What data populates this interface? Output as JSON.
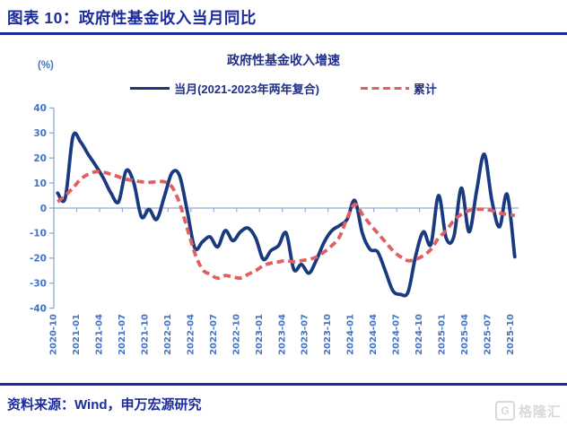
{
  "figure": {
    "title": "图表 10：政府性基金收入当月同比",
    "source": "资料来源：Wind，申万宏源研究",
    "watermark": "格隆汇",
    "watermark_icon": "G"
  },
  "colors": {
    "navy_text": "#1C2B9D",
    "axis_blue": "#8FAADC",
    "tick_label_blue": "#4472C4",
    "series_monthly": "#1A3A80",
    "series_cumulative": "#E05F5F"
  },
  "chart_data": {
    "type": "line",
    "title": "政府性基金收入增速",
    "unit_label": "(%)",
    "ylim": [
      -40,
      40
    ],
    "y_ticks": [
      40,
      30,
      20,
      10,
      0,
      -10,
      -20,
      -30,
      -40
    ],
    "x_tick_interval": 3,
    "grid": false,
    "legend_position": "top",
    "categories": [
      "2020-10",
      "2020-11",
      "2020-12",
      "2021-01",
      "2021-02",
      "2021-03",
      "2021-04",
      "2021-05",
      "2021-06",
      "2021-07",
      "2021-08",
      "2021-09",
      "2021-10",
      "2021-11",
      "2021-12",
      "2022-01",
      "2022-02",
      "2022-03",
      "2022-04",
      "2022-05",
      "2022-06",
      "2022-07",
      "2022-08",
      "2022-09",
      "2022-10",
      "2022-11",
      "2022-12",
      "2023-01",
      "2023-02",
      "2023-03",
      "2023-04",
      "2023-05",
      "2023-06",
      "2023-07",
      "2023-08",
      "2023-09",
      "2023-10",
      "2023-11",
      "2023-12",
      "2024-01",
      "2024-02",
      "2024-03",
      "2024-04",
      "2024-05",
      "2024-06",
      "2024-07",
      "2024-08",
      "2024-09",
      "2024-10",
      "2024-11",
      "2024-12",
      "2025-01",
      "2025-02",
      "2025-03",
      "2025-04",
      "2025-05",
      "2025-06",
      "2025-07",
      "2025-08",
      "2025-09",
      "2025-10"
    ],
    "series": [
      {
        "name": "当月(2021-2023年两年复合)",
        "style": "solid",
        "color": "#1A3A80",
        "values": [
          6,
          4,
          28.5,
          26.5,
          21.5,
          17,
          12,
          6,
          2.5,
          15,
          10,
          -3.5,
          -0.5,
          -4.5,
          4.5,
          14,
          13,
          -1,
          -16,
          -13.5,
          -11.5,
          -15.5,
          -9,
          -13,
          -9.5,
          -8,
          -12,
          -20.5,
          -17,
          -15,
          -10,
          -24.5,
          -22.5,
          -26,
          -20.5,
          -13.5,
          -9,
          -7,
          -4.5,
          3,
          -10,
          -16.5,
          -17.5,
          -25,
          -33,
          -34.5,
          -33.5,
          -19,
          -9.5,
          -14.5,
          5,
          -12,
          -11.5,
          8,
          -9.5,
          7,
          21.5,
          3,
          -7.5,
          5.5,
          -19.5
        ]
      },
      {
        "name": "累计",
        "style": "dashed",
        "color": "#E05F5F",
        "values": [
          2.5,
          5,
          8,
          11.5,
          13.5,
          14.5,
          14.3,
          13.5,
          12.5,
          11.5,
          11,
          10.5,
          10.3,
          10.5,
          10.5,
          8.5,
          2,
          -8,
          -18,
          -24.5,
          -26.5,
          -28,
          -27,
          -27.5,
          -28,
          -26.5,
          -25,
          -23,
          -22,
          -21.5,
          -21,
          -21.5,
          -21,
          -20.5,
          -19.5,
          -17.5,
          -15,
          -11.5,
          -4,
          1.5,
          -2.5,
          -6.5,
          -10,
          -13.5,
          -17,
          -19.5,
          -21,
          -20.5,
          -19,
          -16.5,
          -12,
          -9,
          -5,
          -2.5,
          -1,
          -0.5,
          -0.5,
          -1,
          -2,
          -2.5,
          -3
        ]
      }
    ]
  }
}
